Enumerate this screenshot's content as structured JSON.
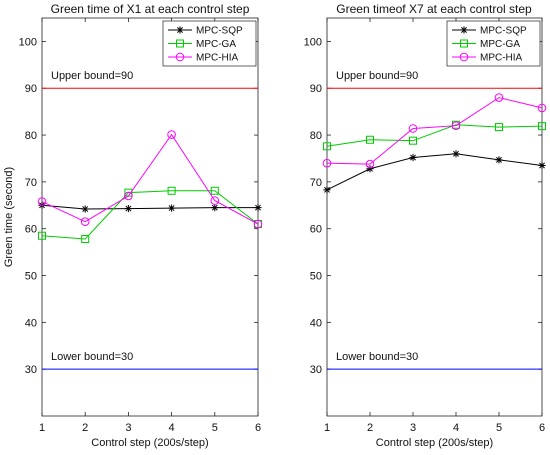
{
  "chart_data": [
    {
      "type": "line",
      "title": "Green time of X1 at each control step",
      "xlabel": "Control step (200s/step)",
      "ylabel": "Green time (second)",
      "xlim": [
        1,
        6
      ],
      "ylim": [
        20,
        105
      ],
      "x_ticks": [
        "1",
        "2",
        "3",
        "4",
        "5",
        "6"
      ],
      "y_ticks": [
        "30",
        "40",
        "50",
        "60",
        "70",
        "80",
        "90",
        "100"
      ],
      "x": [
        1,
        2,
        3,
        4,
        5,
        6
      ],
      "series": [
        {
          "name": "MPC-SQP",
          "color": "#000000",
          "marker": "star",
          "values": [
            65.0,
            64.2,
            64.3,
            64.4,
            64.5,
            64.5
          ]
        },
        {
          "name": "MPC-GA",
          "color": "#00cc00",
          "marker": "square",
          "values": [
            58.5,
            57.8,
            67.7,
            68.1,
            68.1,
            61.0
          ]
        },
        {
          "name": "MPC-HIA",
          "color": "#ff00ff",
          "marker": "circle",
          "values": [
            65.8,
            61.5,
            67.0,
            80.1,
            66.0,
            61.0
          ]
        }
      ],
      "annotations": [
        {
          "text": "Upper bound=90",
          "y": 90,
          "color": "#ff0000"
        },
        {
          "text": "Lower bound=30",
          "y": 30,
          "color": "#0000ff"
        }
      ],
      "legend_position": "top-right",
      "grid": false
    },
    {
      "type": "line",
      "title": "Green timeof X7 at each control step",
      "xlabel": "Control step (200s/step)",
      "ylabel": "",
      "xlim": [
        1,
        6
      ],
      "ylim": [
        20,
        105
      ],
      "x_ticks": [
        "1",
        "2",
        "3",
        "4",
        "5",
        "6"
      ],
      "y_ticks": [
        "30",
        "40",
        "50",
        "60",
        "70",
        "80",
        "90",
        "100"
      ],
      "x": [
        1,
        2,
        3,
        4,
        5,
        6
      ],
      "series": [
        {
          "name": "MPC-SQP",
          "color": "#000000",
          "marker": "star",
          "values": [
            68.3,
            72.8,
            75.2,
            76.0,
            74.7,
            73.5
          ]
        },
        {
          "name": "MPC-GA",
          "color": "#00cc00",
          "marker": "square",
          "values": [
            77.6,
            79.0,
            78.8,
            82.2,
            81.7,
            81.9
          ]
        },
        {
          "name": "MPC-HIA",
          "color": "#ff00ff",
          "marker": "circle",
          "values": [
            74.0,
            73.8,
            81.4,
            82.0,
            88.0,
            85.8
          ]
        }
      ],
      "annotations": [
        {
          "text": "Upper bound=90",
          "y": 90,
          "color": "#ff0000"
        },
        {
          "text": "Lower bound=30",
          "y": 30,
          "color": "#0000ff"
        }
      ],
      "legend_position": "top-right",
      "grid": false
    }
  ]
}
